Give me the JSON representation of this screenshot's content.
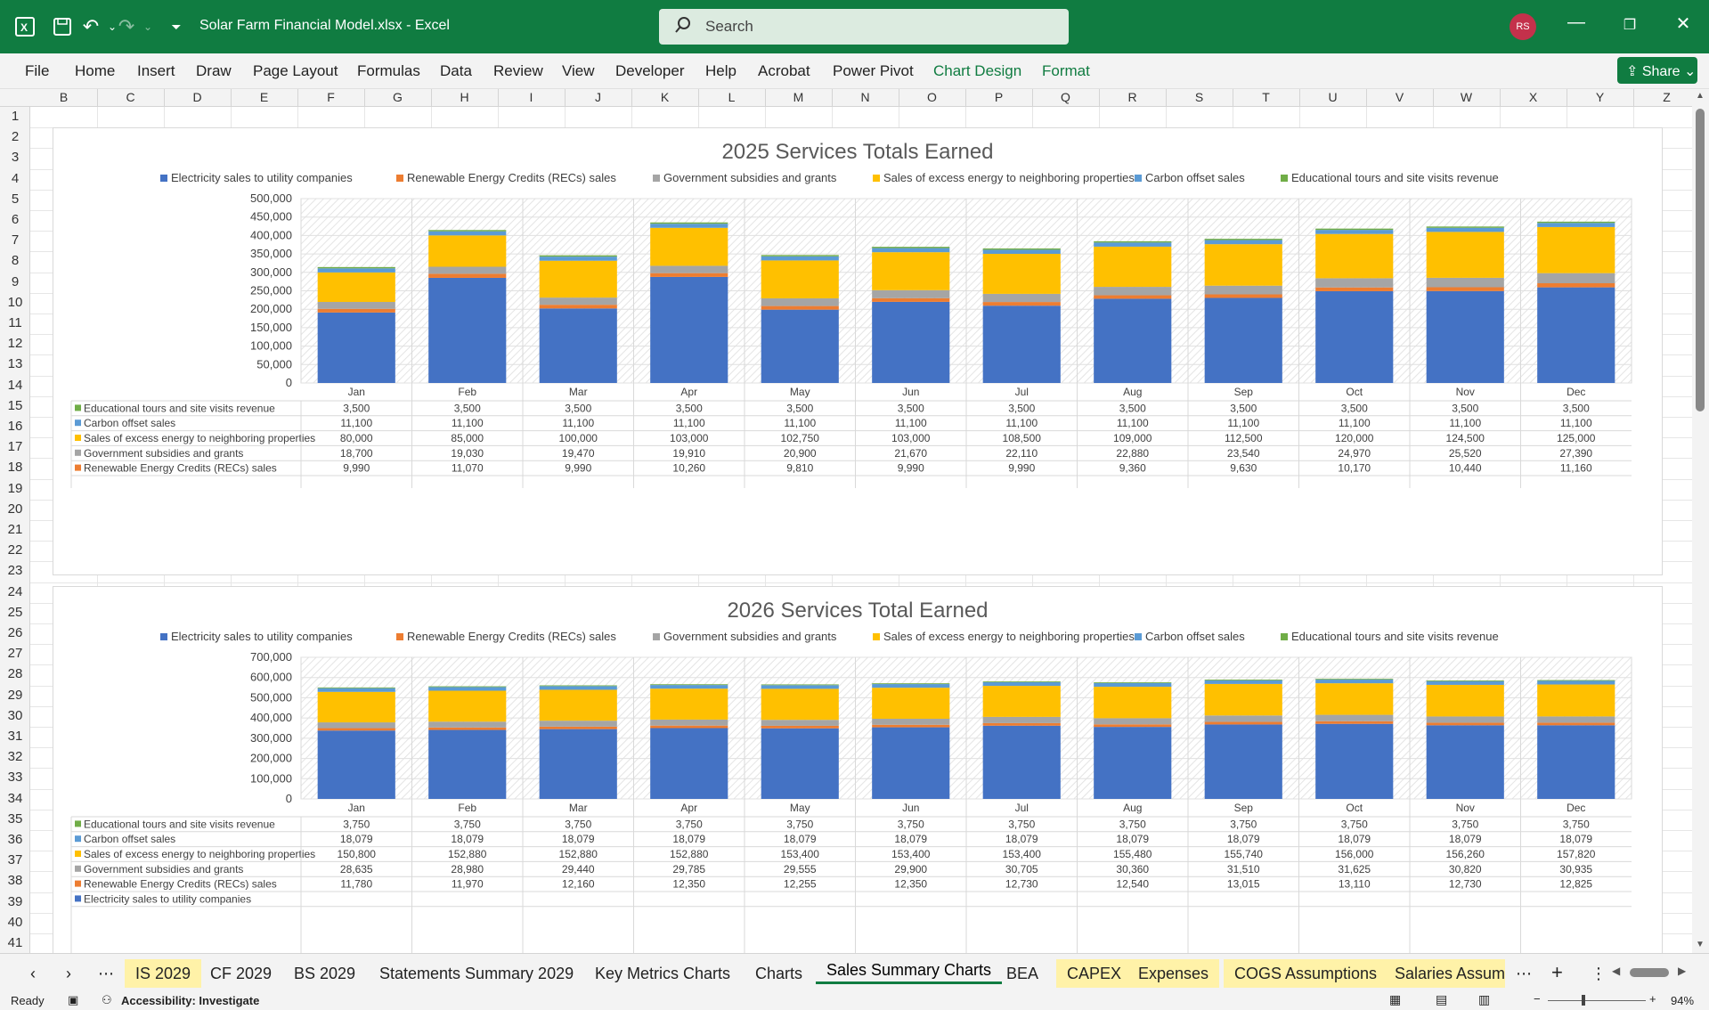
{
  "app": {
    "title": "Solar Farm Financial Model.xlsx  -  Excel",
    "search_placeholder": "Search",
    "avatar": "RS",
    "share": "Share"
  },
  "menu": [
    "File",
    "Home",
    "Insert",
    "Draw",
    "Page Layout",
    "Formulas",
    "Data",
    "Review",
    "View",
    "Developer",
    "Help",
    "Acrobat",
    "Power Pivot",
    "Chart Design",
    "Format"
  ],
  "columns": [
    "B",
    "C",
    "D",
    "E",
    "F",
    "G",
    "H",
    "I",
    "J",
    "K",
    "L",
    "M",
    "N",
    "O",
    "P",
    "Q",
    "R",
    "S",
    "T",
    "U",
    "V",
    "W",
    "X",
    "Y",
    "Z"
  ],
  "rows": [
    "1",
    "2",
    "3",
    "4",
    "5",
    "6",
    "7",
    "8",
    "9",
    "10",
    "11",
    "12",
    "13",
    "14",
    "15",
    "16",
    "17",
    "18",
    "19",
    "20",
    "21",
    "22",
    "23",
    "24",
    "25",
    "26",
    "27",
    "28",
    "29",
    "30",
    "31",
    "32",
    "33",
    "34",
    "35",
    "36",
    "37",
    "38",
    "39",
    "40",
    "41"
  ],
  "colors": {
    "electricity": "#4472c4",
    "recs": "#ed7d31",
    "government": "#a5a5a5",
    "excess": "#ffc000",
    "carbon": "#5b9bd5",
    "tours": "#70ad47"
  },
  "chart_data": [
    {
      "type": "bar",
      "stacked": true,
      "title": "2025 Services Totals Earned",
      "categories": [
        "Jan",
        "Feb",
        "Mar",
        "Apr",
        "May",
        "Jun",
        "Jul",
        "Aug",
        "Sep",
        "Oct",
        "Nov",
        "Dec"
      ],
      "ylim": [
        0,
        500000
      ],
      "yticks": [
        "500,000",
        "450,000",
        "400,000",
        "350,000",
        "300,000",
        "250,000",
        "200,000",
        "150,000",
        "100,000",
        "50,000",
        "0"
      ],
      "legend_position": "top",
      "series": [
        {
          "name": "Electricity sales to utility companies",
          "key": "electricity",
          "values": [
            191100,
            285111,
            202150,
            287640,
            198900,
            220025,
            209625,
            228475,
            230750,
            248950,
            249275,
            259350
          ],
          "labels": [
            "191,100",
            "285,111",
            "202,150",
            "287,640",
            "198,900",
            "220,025",
            "209,625",
            "228,475",
            "230,750",
            "248,950",
            "249,275",
            "259,350"
          ]
        },
        {
          "name": "Renewable Energy Credits (RECs) sales",
          "key": "recs",
          "values": [
            9990,
            11070,
            9990,
            10260,
            9810,
            9990,
            9990,
            9360,
            9630,
            10170,
            10440,
            11160
          ],
          "labels": [
            "9,990",
            "11,070",
            "9,990",
            "10,260",
            "9,810",
            "9,990",
            "9,990",
            "9,360",
            "9,630",
            "10,170",
            "10,440",
            "11,160"
          ]
        },
        {
          "name": "Government subsidies and grants",
          "key": "government",
          "values": [
            18700,
            19030,
            19470,
            19910,
            20900,
            21670,
            22110,
            22880,
            23540,
            24970,
            25520,
            27390
          ],
          "labels": [
            "18,700",
            "19,030",
            "19,470",
            "19,910",
            "20,900",
            "21,670",
            "22,110",
            "22,880",
            "23,540",
            "24,970",
            "25,520",
            "27,390"
          ]
        },
        {
          "name": "Sales of excess energy to neighboring properties",
          "key": "excess",
          "values": [
            80000,
            85000,
            100000,
            103000,
            102750,
            103000,
            108500,
            109000,
            112500,
            120000,
            124500,
            125000
          ],
          "labels": [
            "80,000",
            "85,000",
            "100,000",
            "103,000",
            "102,750",
            "103,000",
            "108,500",
            "109,000",
            "112,500",
            "120,000",
            "124,500",
            "125,000"
          ]
        },
        {
          "name": "Carbon offset sales",
          "key": "carbon",
          "values": [
            11100,
            11100,
            11100,
            11100,
            11100,
            11100,
            11100,
            11100,
            11100,
            11100,
            11100,
            11100
          ],
          "labels": [
            "11,100",
            "11,100",
            "11,100",
            "11,100",
            "11,100",
            "11,100",
            "11,100",
            "11,100",
            "11,100",
            "11,100",
            "11,100",
            "11,100"
          ]
        },
        {
          "name": "Educational tours and site visits revenue",
          "key": "tours",
          "values": [
            3500,
            3500,
            3500,
            3500,
            3500,
            3500,
            3500,
            3500,
            3500,
            3500,
            3500,
            3500
          ],
          "labels": [
            "3,500",
            "3,500",
            "3,500",
            "3,500",
            "3,500",
            "3,500",
            "3,500",
            "3,500",
            "3,500",
            "3,500",
            "3,500",
            "3,500"
          ]
        }
      ]
    },
    {
      "type": "bar",
      "stacked": true,
      "title": "2026 Services Total Earned",
      "categories": [
        "Jan",
        "Feb",
        "Mar",
        "Apr",
        "May",
        "Jun",
        "Jul",
        "Aug",
        "Sep",
        "Oct",
        "Nov",
        "Dec"
      ],
      "ylim": [
        0,
        700000
      ],
      "yticks": [
        "700,000",
        "600,000",
        "500,000",
        "400,000",
        "300,000",
        "200,000",
        "100,000",
        "0"
      ],
      "legend_position": "top",
      "series": [
        {
          "name": "Electricity sales to utility companies",
          "key": "electricity",
          "values": [
            338000,
            341000,
            345000,
            350000,
            349000,
            354000,
            362000,
            356000,
            368000,
            371000,
            364000,
            364000
          ],
          "labels": null
        },
        {
          "name": "Renewable Energy Credits (RECs) sales",
          "key": "recs",
          "values": [
            11780,
            11970,
            12160,
            12350,
            12255,
            12350,
            12730,
            12540,
            13015,
            13110,
            12730,
            12825
          ],
          "labels": [
            "11,780",
            "11,970",
            "12,160",
            "12,350",
            "12,255",
            "12,350",
            "12,730",
            "12,540",
            "13,015",
            "13,110",
            "12,730",
            "12,825"
          ]
        },
        {
          "name": "Government subsidies and grants",
          "key": "government",
          "values": [
            28635,
            28980,
            29440,
            29785,
            29555,
            29900,
            30705,
            30360,
            31510,
            31625,
            30820,
            30935
          ],
          "labels": [
            "28,635",
            "28,980",
            "29,440",
            "29,785",
            "29,555",
            "29,900",
            "30,705",
            "30,360",
            "31,510",
            "31,625",
            "30,820",
            "30,935"
          ]
        },
        {
          "name": "Sales of excess energy to neighboring properties",
          "key": "excess",
          "values": [
            150800,
            152880,
            152880,
            152880,
            153400,
            153400,
            153400,
            155480,
            155740,
            156000,
            156260,
            157820
          ],
          "labels": [
            "150,800",
            "152,880",
            "152,880",
            "152,880",
            "153,400",
            "153,400",
            "153,400",
            "155,480",
            "155,740",
            "156,000",
            "156,260",
            "157,820"
          ]
        },
        {
          "name": "Carbon offset sales",
          "key": "carbon",
          "values": [
            18079,
            18079,
            18079,
            18079,
            18079,
            18079,
            18079,
            18079,
            18079,
            18079,
            18079,
            18079
          ],
          "labels": [
            "18,079",
            "18,079",
            "18,079",
            "18,079",
            "18,079",
            "18,079",
            "18,079",
            "18,079",
            "18,079",
            "18,079",
            "18,079",
            "18,079"
          ]
        },
        {
          "name": "Educational tours and site visits revenue",
          "key": "tours",
          "values": [
            3750,
            3750,
            3750,
            3750,
            3750,
            3750,
            3750,
            3750,
            3750,
            3750,
            3750,
            3750
          ],
          "labels": [
            "3,750",
            "3,750",
            "3,750",
            "3,750",
            "3,750",
            "3,750",
            "3,750",
            "3,750",
            "3,750",
            "3,750",
            "3,750",
            "3,750"
          ]
        }
      ]
    }
  ],
  "tabs": [
    {
      "label": "IS 2029",
      "yellow": true
    },
    {
      "label": "CF 2029",
      "yellow": false
    },
    {
      "label": "BS 2029",
      "yellow": false
    },
    {
      "label": "Statements Summary 2029",
      "yellow": false
    },
    {
      "label": "Key Metrics Charts",
      "yellow": false
    },
    {
      "label": "Charts",
      "yellow": false
    },
    {
      "label": "Sales Summary Charts",
      "yellow": false,
      "active": true
    },
    {
      "label": "BEA",
      "yellow": false
    },
    {
      "label": "CAPEX",
      "yellow": true
    },
    {
      "label": "Expenses",
      "yellow": true
    },
    {
      "label": "COGS Assumptions",
      "yellow": true
    },
    {
      "label": "Salaries Assum",
      "yellow": true
    }
  ],
  "status": {
    "ready": "Ready",
    "accessibility": "Accessibility: Investigate",
    "zoom": "94%"
  }
}
